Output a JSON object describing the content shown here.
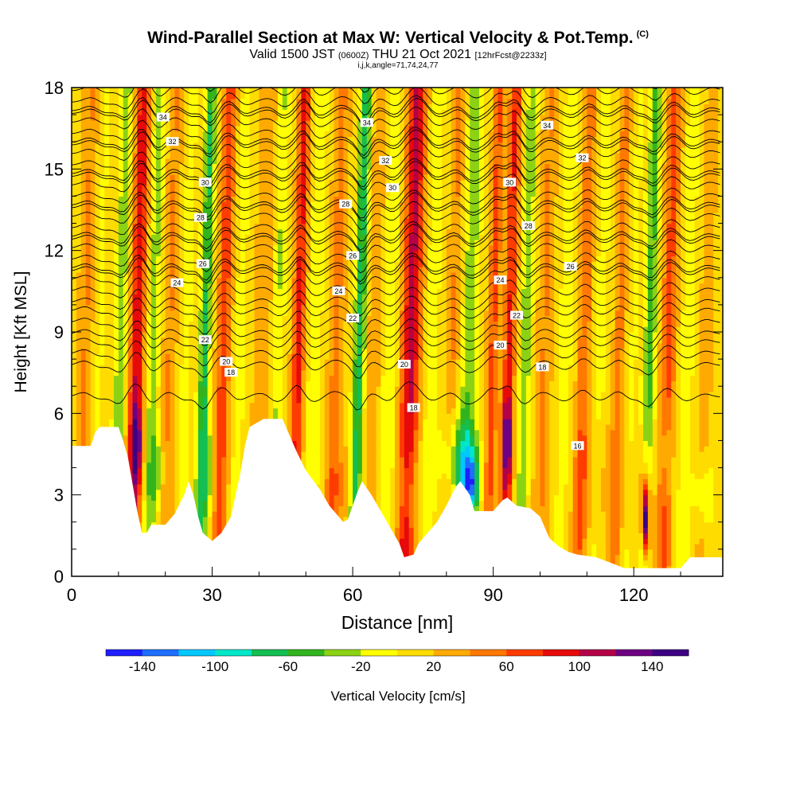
{
  "header": {
    "title": "Wind-Parallel Section at Max W: Vertical Velocity & Pot.Temp.",
    "copyright": "(C)",
    "valid_prefix": "Valid 1500 JST",
    "valid_utc": "(0600Z)",
    "valid_date": "THU 21 Oct 2021",
    "forecast": "[12hrFcst@2233z]",
    "grid_info": "i,j,k,angle=71,74,24,77"
  },
  "chart_data": {
    "type": "heatmap",
    "title": "Wind-Parallel Section at Max W: Vertical Velocity & Pot.Temp.",
    "xlabel": "Distance [nm]",
    "ylabel": "Height [Kft MSL]",
    "xlim": [
      0,
      139
    ],
    "ylim": [
      0,
      18
    ],
    "x_ticks": [
      0,
      30,
      60,
      90,
      120
    ],
    "y_ticks": [
      0,
      3,
      6,
      9,
      12,
      15,
      18
    ],
    "colorbar": {
      "label": "Vertical Velocity [cm/s]",
      "tick_labels": [
        -140,
        -100,
        -60,
        -20,
        20,
        60,
        100,
        140
      ],
      "levels": [
        -160,
        -140,
        -120,
        -100,
        -80,
        -60,
        -40,
        -20,
        0,
        20,
        40,
        60,
        80,
        100,
        120,
        140,
        160
      ],
      "colors": [
        "#1e1eff",
        "#1e6eff",
        "#00c8ff",
        "#00e6c8",
        "#14be50",
        "#32b41e",
        "#8cd214",
        "#ffff00",
        "#ffdc00",
        "#ffaa00",
        "#ff7800",
        "#ff3c00",
        "#e60a0a",
        "#b40046",
        "#6e0082",
        "#3c0082"
      ]
    },
    "velocity_columns": [
      {
        "x": 3,
        "w": 1.6,
        "v": 30
      },
      {
        "x": 6,
        "w": 1.5,
        "v": -15
      },
      {
        "x": 10.5,
        "w": 1.3,
        "v": -45
      },
      {
        "x": 14,
        "w": 1.5,
        "v": 85
      },
      {
        "x": 17.5,
        "w": 1.3,
        "v": -40
      },
      {
        "x": 21,
        "w": 1.5,
        "v": 30
      },
      {
        "x": 24.5,
        "w": 1.3,
        "v": -20
      },
      {
        "x": 28.5,
        "w": 1.2,
        "v": -75
      },
      {
        "x": 32.5,
        "w": 1.5,
        "v": 60
      },
      {
        "x": 36,
        "w": 1.4,
        "v": -20
      },
      {
        "x": 41,
        "w": 2,
        "v": 25
      },
      {
        "x": 44,
        "w": 1.4,
        "v": -35
      },
      {
        "x": 48.5,
        "w": 1.3,
        "v": 75
      },
      {
        "x": 52,
        "w": 1.5,
        "v": -30
      },
      {
        "x": 56.5,
        "w": 1.6,
        "v": 35
      },
      {
        "x": 61.5,
        "w": 1.2,
        "v": -85
      },
      {
        "x": 64.5,
        "w": 1.5,
        "v": 25
      },
      {
        "x": 68,
        "w": 1.5,
        "v": -30
      },
      {
        "x": 72.5,
        "w": 2,
        "v": 95
      },
      {
        "x": 77,
        "w": 1.5,
        "v": -25
      },
      {
        "x": 81.5,
        "w": 1.4,
        "v": 30
      },
      {
        "x": 85,
        "w": 1.7,
        "v": -45
      },
      {
        "x": 90,
        "w": 1.2,
        "v": 55
      },
      {
        "x": 93.5,
        "w": 1.3,
        "v": 70
      },
      {
        "x": 97,
        "w": 1.3,
        "v": -45
      },
      {
        "x": 101,
        "w": 1.6,
        "v": 30
      },
      {
        "x": 105.5,
        "w": 1.5,
        "v": -25
      },
      {
        "x": 109.5,
        "w": 1.4,
        "v": 45
      },
      {
        "x": 113,
        "w": 1.5,
        "v": -20
      },
      {
        "x": 117,
        "w": 1.3,
        "v": 35
      },
      {
        "x": 120,
        "w": 1.3,
        "v": -15
      },
      {
        "x": 123.5,
        "w": 1.3,
        "v": -60
      },
      {
        "x": 127.5,
        "w": 1.6,
        "v": 55
      },
      {
        "x": 131.5,
        "w": 1.5,
        "v": -25
      },
      {
        "x": 135.5,
        "w": 1.4,
        "v": 20
      }
    ],
    "low_level_blobs": [
      {
        "x": 14,
        "y": 4.8,
        "rx": 1.3,
        "ry": 1.6,
        "v": 100
      },
      {
        "x": 18,
        "y": 3.8,
        "rx": 1.5,
        "ry": 1.6,
        "v": -45
      },
      {
        "x": 29,
        "y": 3.8,
        "rx": 1.6,
        "ry": 1.8,
        "v": -40
      },
      {
        "x": 57,
        "y": 3.2,
        "rx": 2.5,
        "ry": 1.8,
        "v": 40
      },
      {
        "x": 72,
        "y": 3.0,
        "rx": 2.5,
        "ry": 1.8,
        "v": -30
      },
      {
        "x": 83,
        "y": 4.2,
        "rx": 3.5,
        "ry": 1.8,
        "v": -75
      },
      {
        "x": 85.5,
        "y": 3.4,
        "rx": 1.6,
        "ry": 1.2,
        "v": -95
      },
      {
        "x": 93,
        "y": 5.0,
        "rx": 1.2,
        "ry": 1.6,
        "v": 100
      },
      {
        "x": 112,
        "y": 3.6,
        "rx": 6,
        "ry": 2.4,
        "v": 35
      },
      {
        "x": 122.5,
        "y": 2.6,
        "rx": 1.2,
        "ry": 2.0,
        "v": 110
      },
      {
        "x": 122.5,
        "y": 2.0,
        "rx": 0.7,
        "ry": 1.2,
        "v": 150
      },
      {
        "x": 127,
        "y": 4.5,
        "rx": 1.2,
        "ry": 1.5,
        "v": -30
      },
      {
        "x": 135,
        "y": 3.0,
        "rx": 2.2,
        "ry": 1.4,
        "v": -35
      }
    ],
    "terrain": [
      [
        0,
        4.8
      ],
      [
        4,
        4.8
      ],
      [
        4.5,
        5.0
      ],
      [
        5,
        5.3
      ],
      [
        6,
        5.5
      ],
      [
        10,
        5.5
      ],
      [
        11,
        5.0
      ],
      [
        12,
        4.4
      ],
      [
        13,
        3.4
      ],
      [
        14,
        2.4
      ],
      [
        15,
        1.6
      ],
      [
        16,
        1.6
      ],
      [
        17,
        1.9
      ],
      [
        20,
        1.9
      ],
      [
        22,
        2.3
      ],
      [
        24,
        3.0
      ],
      [
        25,
        3.5
      ],
      [
        26,
        3.0
      ],
      [
        27,
        2.2
      ],
      [
        28,
        1.6
      ],
      [
        30,
        1.3
      ],
      [
        32,
        1.6
      ],
      [
        34,
        2.2
      ],
      [
        35,
        3.0
      ],
      [
        36,
        3.8
      ],
      [
        37,
        4.8
      ],
      [
        38,
        5.5
      ],
      [
        41,
        5.8
      ],
      [
        45,
        5.8
      ],
      [
        46,
        5.4
      ],
      [
        48,
        4.6
      ],
      [
        50,
        3.9
      ],
      [
        53,
        3.2
      ],
      [
        55,
        2.6
      ],
      [
        57,
        2.2
      ],
      [
        58,
        2.0
      ],
      [
        59,
        2.1
      ],
      [
        60,
        2.6
      ],
      [
        61,
        3.1
      ],
      [
        62,
        3.5
      ],
      [
        64,
        3.0
      ],
      [
        66,
        2.4
      ],
      [
        68,
        1.8
      ],
      [
        70,
        1.2
      ],
      [
        71,
        0.7
      ],
      [
        73,
        0.8
      ],
      [
        74,
        1.2
      ],
      [
        76,
        1.6
      ],
      [
        78,
        2.0
      ],
      [
        80,
        2.6
      ],
      [
        82,
        3.3
      ],
      [
        83,
        3.5
      ],
      [
        85,
        3.0
      ],
      [
        86,
        2.4
      ],
      [
        90,
        2.4
      ],
      [
        91,
        2.6
      ],
      [
        92,
        2.8
      ],
      [
        93,
        2.9
      ],
      [
        95,
        2.6
      ],
      [
        98,
        2.5
      ],
      [
        100,
        2.2
      ],
      [
        101,
        1.8
      ],
      [
        102,
        1.4
      ],
      [
        104,
        1.1
      ],
      [
        106,
        0.9
      ],
      [
        108,
        0.8
      ],
      [
        112,
        0.7
      ],
      [
        115,
        0.5
      ],
      [
        118,
        0.3
      ],
      [
        130,
        0.3
      ],
      [
        132,
        0.7
      ],
      [
        139,
        0.7
      ]
    ],
    "isentropes": {
      "levels": [
        16,
        18,
        20,
        22,
        24,
        26,
        28,
        30,
        32,
        34
      ],
      "labels": [
        {
          "text": "16",
          "x": 108,
          "y": 4.8
        },
        {
          "text": "18",
          "x": 34,
          "y": 7.5
        },
        {
          "text": "18",
          "x": 73,
          "y": 6.2
        },
        {
          "text": "18",
          "x": 100.5,
          "y": 7.7
        },
        {
          "text": "20",
          "x": 33,
          "y": 7.9
        },
        {
          "text": "20",
          "x": 71,
          "y": 7.8
        },
        {
          "text": "20",
          "x": 91.5,
          "y": 8.5
        },
        {
          "text": "22",
          "x": 28.5,
          "y": 8.7
        },
        {
          "text": "22",
          "x": 60,
          "y": 9.5
        },
        {
          "text": "22",
          "x": 95,
          "y": 9.6
        },
        {
          "text": "24",
          "x": 22.5,
          "y": 10.8
        },
        {
          "text": "24",
          "x": 57,
          "y": 10.5
        },
        {
          "text": "24",
          "x": 91.5,
          "y": 10.9
        },
        {
          "text": "26",
          "x": 28,
          "y": 11.5
        },
        {
          "text": "26",
          "x": 60,
          "y": 11.8
        },
        {
          "text": "26",
          "x": 106.5,
          "y": 11.4
        },
        {
          "text": "28",
          "x": 27.5,
          "y": 13.2
        },
        {
          "text": "28",
          "x": 58.5,
          "y": 13.7
        },
        {
          "text": "28",
          "x": 97.5,
          "y": 12.9
        },
        {
          "text": "30",
          "x": 28.5,
          "y": 14.5
        },
        {
          "text": "30",
          "x": 68.5,
          "y": 14.3
        },
        {
          "text": "30",
          "x": 93.5,
          "y": 14.5
        },
        {
          "text": "32",
          "x": 21.5,
          "y": 16.0
        },
        {
          "text": "32",
          "x": 67,
          "y": 15.3
        },
        {
          "text": "32",
          "x": 109,
          "y": 15.4
        },
        {
          "text": "34",
          "x": 19.5,
          "y": 16.9
        },
        {
          "text": "34",
          "x": 63,
          "y": 16.7
        },
        {
          "text": "34",
          "x": 101.5,
          "y": 16.6
        }
      ]
    }
  }
}
